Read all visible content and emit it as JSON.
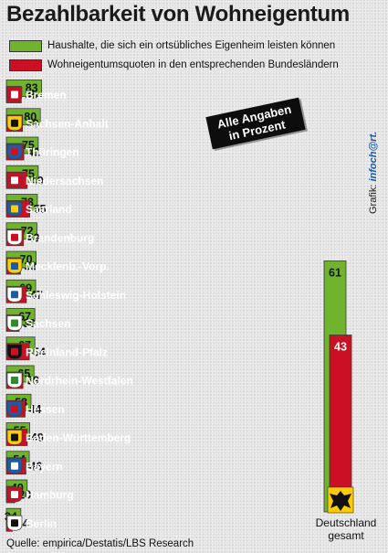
{
  "title": "Bezahlbarkeit von Wohneigentum",
  "legend": [
    {
      "label": "Haushalte, die sich ein ortsübliches Eigenheim leisten können",
      "color": "#6fb42c"
    },
    {
      "label": "Wohneigentumsquoten in den entsprechenden Bundesländern",
      "color": "#cc1023"
    }
  ],
  "note": [
    "Alle Angaben",
    "in Prozent"
  ],
  "credit": {
    "prefix": "Grafik: ",
    "brand": "infoch@rt."
  },
  "source": "Quelle: empirica/Destatis/LBS Research",
  "chart_data": {
    "type": "bar",
    "orientation": "horizontal",
    "categories": [
      "Bremen",
      "Sachsen-Anhalt",
      "Thüringen",
      "Niedersachsen",
      "Saarland",
      "Brandenburg",
      "Mecklenb.-Vorp.",
      "Schleswig-Holstein",
      "Sachsen",
      "Rheinland-Pfalz",
      "Nordrhein-Westfalen",
      "Hessen",
      "Baden-Württemberg",
      "Bayern",
      "Hamburg",
      "Berlin"
    ],
    "series": [
      {
        "name": "Haushalte, die sich ein ortsübliches Eigenheim leisten können",
        "color": "#6fb42c",
        "values": [
          83,
          80,
          75,
          75,
          73,
          72,
          70,
          69,
          67,
          67,
          65,
          58,
          55,
          54,
          49,
          34
        ]
      },
      {
        "name": "Wohneigentumsquoten in den entsprechenden Bundesländern",
        "color": "#cc1023",
        "values": [
          35,
          38,
          41,
          49,
          55,
          40,
          33,
          47,
          30,
          54,
          39,
          44,
          49,
          46,
          20,
          14
        ]
      }
    ],
    "xlim": [
      0,
      83
    ],
    "germany_total": {
      "label_lines": [
        "Deutschland",
        "gesamt"
      ],
      "values": [
        61,
        43
      ]
    }
  },
  "icons": [
    "bremen-coat-of-arms-icon",
    "sachsen-anhalt-coat-of-arms-icon",
    "thueringen-coat-of-arms-icon",
    "niedersachsen-coat-of-arms-icon",
    "saarland-coat-of-arms-icon",
    "brandenburg-coat-of-arms-icon",
    "mecklenburg-vorpommern-coat-of-arms-icon",
    "schleswig-holstein-coat-of-arms-icon",
    "sachsen-coat-of-arms-icon",
    "rheinland-pfalz-coat-of-arms-icon",
    "nordrhein-westfalen-coat-of-arms-icon",
    "hessen-coat-of-arms-icon",
    "baden-wuerttemberg-coat-of-arms-icon",
    "bayern-coat-of-arms-icon",
    "hamburg-coat-of-arms-icon",
    "berlin-coat-of-arms-icon",
    "germany-eagle-icon"
  ]
}
